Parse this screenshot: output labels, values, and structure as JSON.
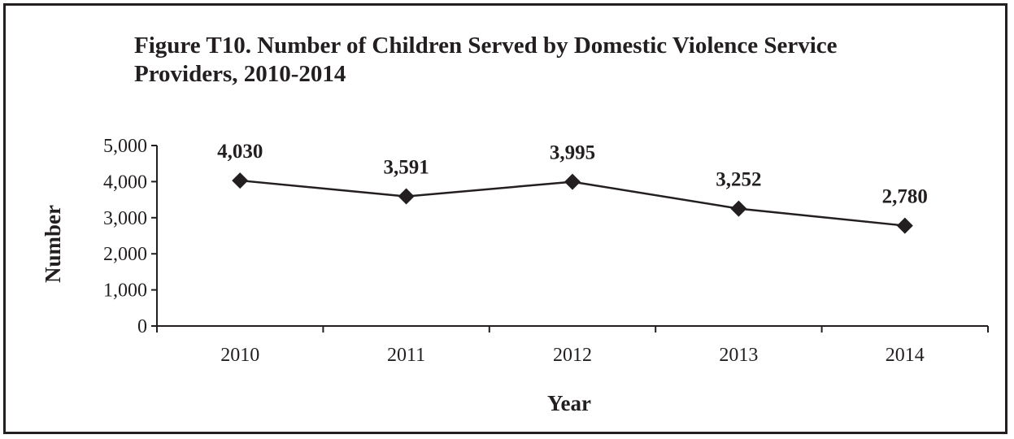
{
  "chart_data": {
    "type": "line",
    "title_lines": [
      "Figure T10.  Number of Children Served by Domestic Violence Service",
      "Providers, 2010-2014"
    ],
    "xlabel": "Year",
    "ylabel": "Number",
    "categories": [
      "2010",
      "2011",
      "2012",
      "2013",
      "2014"
    ],
    "values": [
      4030,
      3591,
      3995,
      3252,
      2780
    ],
    "data_labels": [
      "4,030",
      "3,591",
      "3,995",
      "3,252",
      "2,780"
    ],
    "ylim": [
      0,
      5000
    ],
    "yticks": [
      0,
      1000,
      2000,
      3000,
      4000,
      5000
    ],
    "ytick_labels": [
      "0",
      "1,000",
      "2,000",
      "3,000",
      "4,000",
      "5,000"
    ],
    "marker": "diamond",
    "grid": false,
    "legend": "none",
    "line_color": "#231f20"
  }
}
